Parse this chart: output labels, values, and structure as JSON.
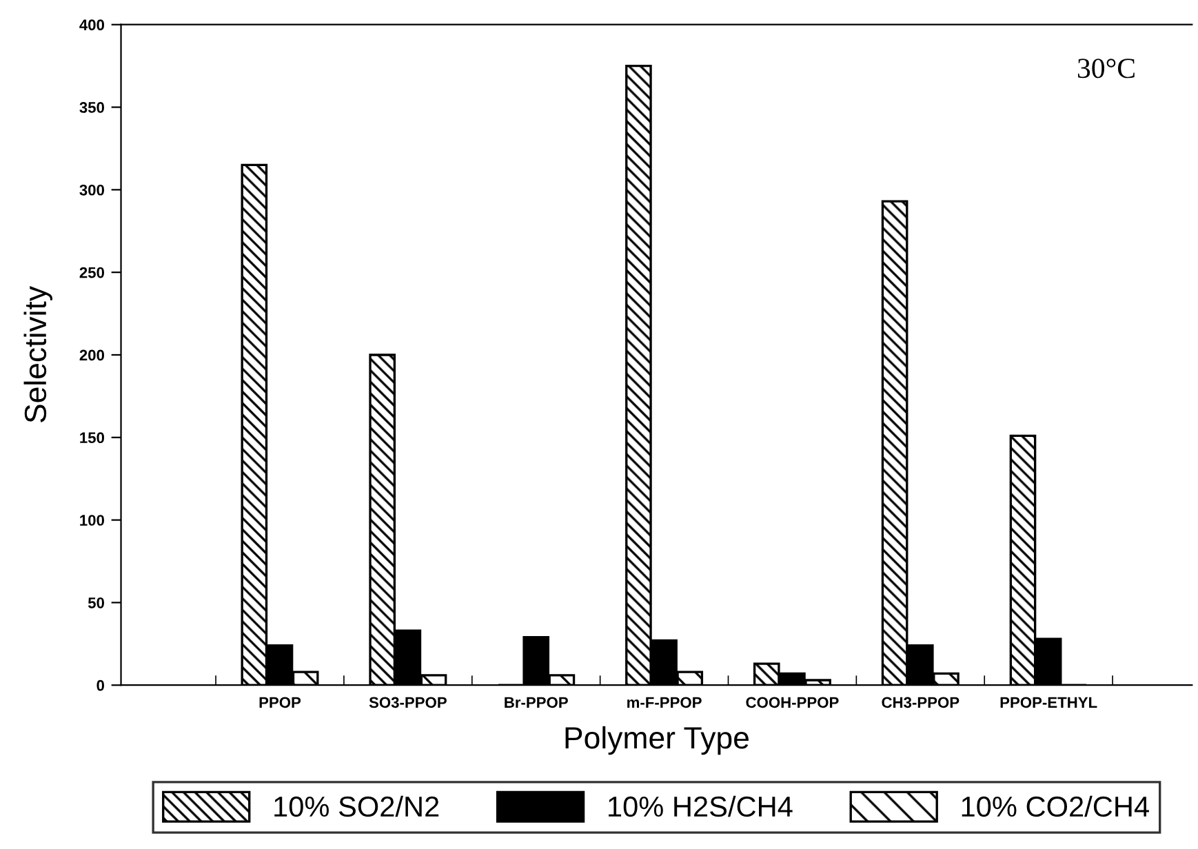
{
  "chart_data": {
    "type": "bar",
    "xlabel": "Polymer Type",
    "ylabel": "Selectivity",
    "categories": [
      null,
      "PPOP",
      "SO3-PPOP",
      "Br-PPOP",
      "m-F-PPOP",
      "COOH-PPOP",
      "CH3-PPOP",
      "PPOP-ETHYL",
      null
    ],
    "series": [
      {
        "name": "10% SO2/N2",
        "color": "#000000",
        "values": [
          null,
          315,
          200,
          0,
          375,
          13,
          293,
          151,
          null
        ]
      },
      {
        "name": "10% H2S/CH4",
        "color": "#000000",
        "values": [
          null,
          24,
          33,
          29,
          27,
          7,
          24,
          28,
          null
        ]
      },
      {
        "name": "10% CO2/CH4",
        "color": "#000000",
        "values": [
          null,
          8,
          6,
          6,
          8,
          3,
          7,
          0,
          null
        ]
      }
    ],
    "ylim": [
      0,
      400
    ],
    "yticks": [
      0,
      50,
      100,
      150,
      200,
      250,
      300,
      350,
      400
    ],
    "annotations": [
      "30°C"
    ],
    "legend": "bottom",
    "grid": false
  }
}
